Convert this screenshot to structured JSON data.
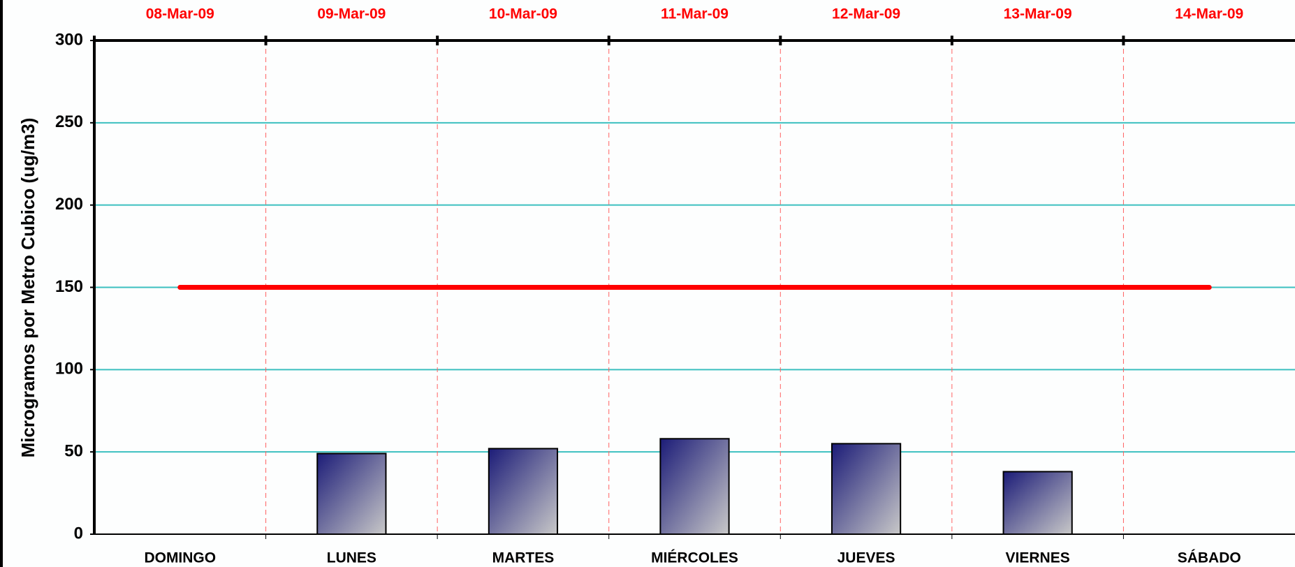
{
  "chart_data": {
    "type": "bar",
    "y_label": "Microgramos por Metro Cubico (ug/m3)",
    "categories": [
      "DOMINGO",
      "LUNES",
      "MARTES",
      "MIÉRCOLES",
      "JUEVES",
      "VIERNES",
      "SÁBADO"
    ],
    "top_categories": [
      "08-Mar-09",
      "09-Mar-09",
      "10-Mar-09",
      "11-Mar-09",
      "12-Mar-09",
      "13-Mar-09",
      "14-Mar-09"
    ],
    "series": [
      {
        "type": "bar",
        "color": "#1c1c78",
        "gradient_end": "#c8c8c8",
        "values": [
          null,
          49,
          52,
          58,
          55,
          38,
          null
        ]
      },
      {
        "type": "line",
        "color": "#ff0000",
        "values": [
          150,
          150,
          150,
          150,
          150,
          150,
          150
        ]
      }
    ],
    "ylim": [
      0,
      300
    ],
    "yticks": [
      0,
      50,
      100,
      150,
      200,
      250,
      300
    ],
    "grid": true,
    "grid_color": "#3cc0c0",
    "separator_color": "#ff6060",
    "top_label_color": "#ff0000"
  }
}
